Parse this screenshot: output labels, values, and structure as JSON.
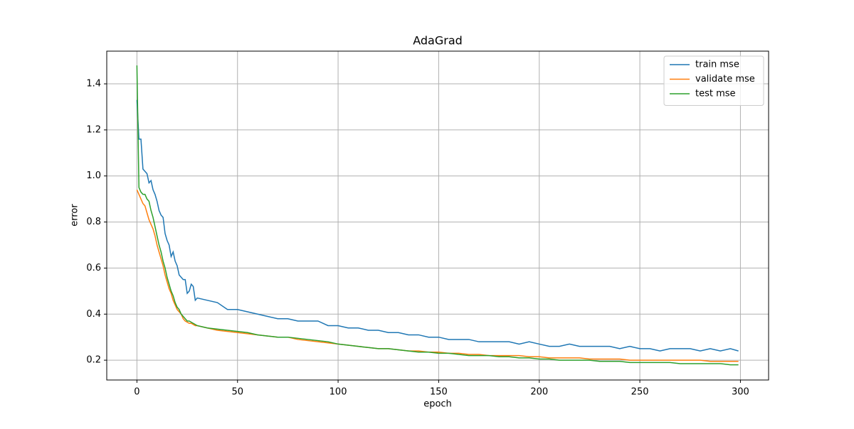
{
  "chart_data": {
    "type": "line",
    "title": "AdaGrad",
    "xlabel": "epoch",
    "ylabel": "error",
    "x": [
      0,
      1,
      2,
      3,
      4,
      5,
      6,
      7,
      8,
      9,
      10,
      11,
      12,
      13,
      14,
      15,
      16,
      17,
      18,
      19,
      20,
      21,
      22,
      23,
      24,
      25,
      26,
      27,
      28,
      29,
      30,
      35,
      40,
      45,
      50,
      55,
      60,
      65,
      70,
      75,
      80,
      85,
      90,
      95,
      100,
      105,
      110,
      115,
      120,
      125,
      130,
      135,
      140,
      145,
      150,
      155,
      160,
      165,
      170,
      175,
      180,
      185,
      190,
      195,
      200,
      205,
      210,
      215,
      220,
      225,
      230,
      235,
      240,
      245,
      250,
      255,
      260,
      265,
      270,
      275,
      280,
      285,
      290,
      295,
      299
    ],
    "series": [
      {
        "name": "train mse",
        "color": "#1f77b4",
        "values": [
          1.33,
          1.16,
          1.16,
          1.03,
          1.02,
          1.01,
          0.97,
          0.98,
          0.94,
          0.92,
          0.89,
          0.85,
          0.83,
          0.82,
          0.75,
          0.72,
          0.7,
          0.65,
          0.67,
          0.63,
          0.61,
          0.57,
          0.56,
          0.55,
          0.55,
          0.49,
          0.5,
          0.53,
          0.52,
          0.46,
          0.47,
          0.46,
          0.45,
          0.42,
          0.42,
          0.41,
          0.4,
          0.39,
          0.38,
          0.38,
          0.37,
          0.37,
          0.37,
          0.35,
          0.35,
          0.34,
          0.34,
          0.33,
          0.33,
          0.32,
          0.32,
          0.31,
          0.31,
          0.3,
          0.3,
          0.29,
          0.29,
          0.29,
          0.28,
          0.28,
          0.28,
          0.28,
          0.27,
          0.28,
          0.27,
          0.26,
          0.26,
          0.27,
          0.26,
          0.26,
          0.26,
          0.26,
          0.25,
          0.26,
          0.25,
          0.25,
          0.24,
          0.25,
          0.25,
          0.25,
          0.24,
          0.25,
          0.24,
          0.25,
          0.24
        ]
      },
      {
        "name": "validate mse",
        "color": "#ff7f0e",
        "values": [
          0.94,
          0.92,
          0.9,
          0.88,
          0.87,
          0.84,
          0.81,
          0.79,
          0.77,
          0.74,
          0.7,
          0.67,
          0.64,
          0.61,
          0.57,
          0.54,
          0.51,
          0.49,
          0.46,
          0.44,
          0.42,
          0.41,
          0.4,
          0.38,
          0.37,
          0.365,
          0.36,
          0.36,
          0.355,
          0.35,
          0.35,
          0.34,
          0.33,
          0.325,
          0.32,
          0.315,
          0.31,
          0.305,
          0.3,
          0.3,
          0.29,
          0.285,
          0.28,
          0.275,
          0.27,
          0.265,
          0.26,
          0.255,
          0.25,
          0.25,
          0.245,
          0.24,
          0.24,
          0.235,
          0.235,
          0.23,
          0.23,
          0.225,
          0.225,
          0.22,
          0.22,
          0.22,
          0.22,
          0.215,
          0.215,
          0.21,
          0.21,
          0.21,
          0.21,
          0.205,
          0.205,
          0.205,
          0.205,
          0.2,
          0.2,
          0.2,
          0.2,
          0.2,
          0.2,
          0.2,
          0.2,
          0.195,
          0.195,
          0.195,
          0.195
        ]
      },
      {
        "name": "test mse",
        "color": "#2ca02c",
        "values": [
          1.48,
          0.95,
          0.93,
          0.92,
          0.92,
          0.9,
          0.89,
          0.85,
          0.82,
          0.78,
          0.74,
          0.7,
          0.67,
          0.63,
          0.6,
          0.56,
          0.53,
          0.5,
          0.48,
          0.45,
          0.43,
          0.42,
          0.4,
          0.39,
          0.38,
          0.37,
          0.37,
          0.365,
          0.36,
          0.355,
          0.35,
          0.34,
          0.335,
          0.33,
          0.325,
          0.32,
          0.31,
          0.305,
          0.3,
          0.3,
          0.295,
          0.29,
          0.285,
          0.28,
          0.27,
          0.265,
          0.26,
          0.255,
          0.25,
          0.25,
          0.245,
          0.24,
          0.235,
          0.235,
          0.23,
          0.23,
          0.225,
          0.22,
          0.22,
          0.22,
          0.215,
          0.215,
          0.21,
          0.21,
          0.205,
          0.205,
          0.2,
          0.2,
          0.2,
          0.2,
          0.195,
          0.195,
          0.195,
          0.19,
          0.19,
          0.19,
          0.19,
          0.19,
          0.185,
          0.185,
          0.185,
          0.185,
          0.185,
          0.18,
          0.18
        ]
      }
    ],
    "xlim": [
      -15,
      314
    ],
    "ylim": [
      0.114,
      1.542
    ],
    "xticks": [
      0,
      50,
      100,
      150,
      200,
      250,
      300
    ],
    "yticks": [
      0.2,
      0.4,
      0.6,
      0.8,
      {
        "value": 1,
        "label": "1.0"
      },
      1.2,
      1.4
    ],
    "grid": true,
    "legend": "upper right"
  }
}
